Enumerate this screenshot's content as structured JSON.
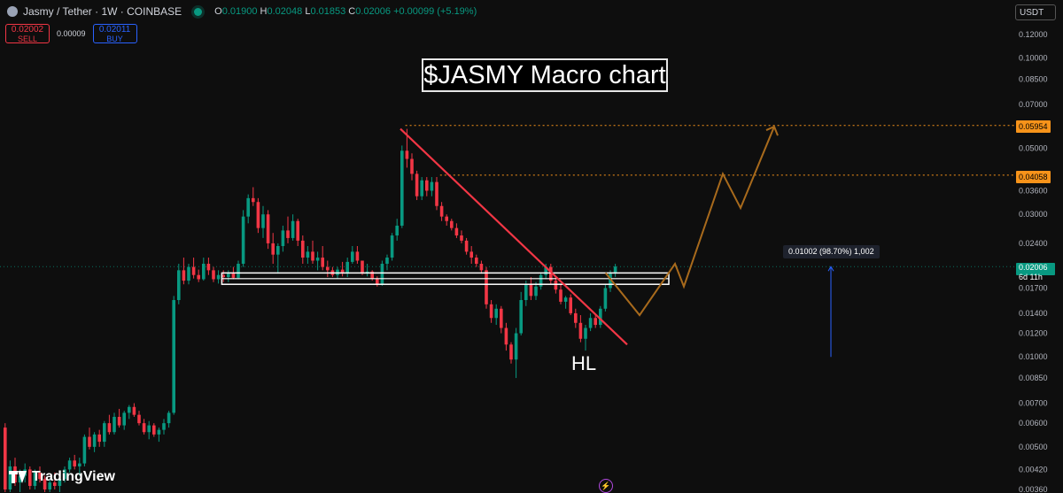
{
  "header": {
    "symbol": "Jasmy / Tether · 1W · COINBASE",
    "open_label": "O",
    "open": "0.01900",
    "high_label": "H",
    "high": "0.02048",
    "low_label": "L",
    "low": "0.01853",
    "close_label": "C",
    "close": "0.02006",
    "change": "+0.00099 (+5.19%)"
  },
  "trade": {
    "sell_price": "0.02002",
    "sell_label": "SELL",
    "spread": "0.00009",
    "buy_price": "0.02011",
    "buy_label": "BUY"
  },
  "currency_select": "USDT",
  "annotations": {
    "title": "$JASMY Macro chart",
    "hl_label": "HL",
    "measure": "0.01002 (98.70%) 1,002"
  },
  "price_labels": {
    "target_high": "0.05954",
    "target_mid": "0.04058",
    "current": "0.02006",
    "countdown": "6d 11h"
  },
  "branding": {
    "logo_text": "TradingView"
  },
  "colors": {
    "background": "#0e0e0e",
    "up": "#089981",
    "down": "#f23645",
    "trendline": "#f23645",
    "projection": "#a86a1c",
    "target_line": "#f7931a",
    "measure_arrow": "#2962ff"
  },
  "chart_data": {
    "type": "candlestick",
    "scale": "log",
    "title": "$JASMY Macro chart",
    "yaxis_ticks": [
      0.12,
      0.1,
      0.085,
      0.07,
      0.05,
      0.036,
      0.03,
      0.024,
      0.017,
      0.014,
      0.012,
      0.01,
      0.0085,
      0.007,
      0.006,
      0.005,
      0.0042,
      0.0036
    ],
    "yaxis_tick_labels": [
      "0.12000",
      "0.10000",
      "0.08500",
      "0.07000",
      "0.05000",
      "0.03600",
      "0.03000",
      "0.02400",
      "0.01700",
      "0.01400",
      "0.01200",
      "0.01000",
      "0.00850",
      "0.00700",
      "0.00600",
      "0.00500",
      "0.00420",
      "0.00360"
    ],
    "ylim": [
      0.0036,
      0.13
    ],
    "candles": [
      [
        0.0058,
        0.006,
        0.0035,
        0.0036
      ],
      [
        0.0036,
        0.0045,
        0.0034,
        0.0043
      ],
      [
        0.0043,
        0.0046,
        0.0037,
        0.0038
      ],
      [
        0.0038,
        0.0042,
        0.0035,
        0.004
      ],
      [
        0.004,
        0.0044,
        0.0038,
        0.0042
      ],
      [
        0.0042,
        0.0043,
        0.0036,
        0.0037
      ],
      [
        0.0037,
        0.0042,
        0.0036,
        0.0041
      ],
      [
        0.0041,
        0.0043,
        0.0038,
        0.0039
      ],
      [
        0.0039,
        0.004,
        0.0035,
        0.0036
      ],
      [
        0.0036,
        0.0039,
        0.0035,
        0.0038
      ],
      [
        0.0038,
        0.0041,
        0.0036,
        0.0037
      ],
      [
        0.0037,
        0.004,
        0.0035,
        0.0039
      ],
      [
        0.0039,
        0.0043,
        0.0038,
        0.0042
      ],
      [
        0.0042,
        0.0046,
        0.0041,
        0.0045
      ],
      [
        0.0045,
        0.0047,
        0.0042,
        0.0043
      ],
      [
        0.0043,
        0.0046,
        0.004,
        0.0044
      ],
      [
        0.0044,
        0.0055,
        0.0043,
        0.0054
      ],
      [
        0.0054,
        0.0058,
        0.0049,
        0.005
      ],
      [
        0.005,
        0.0056,
        0.0048,
        0.0055
      ],
      [
        0.0055,
        0.0057,
        0.005,
        0.0052
      ],
      [
        0.0052,
        0.0061,
        0.005,
        0.006
      ],
      [
        0.006,
        0.0064,
        0.0055,
        0.0056
      ],
      [
        0.0056,
        0.0065,
        0.0055,
        0.0063
      ],
      [
        0.0063,
        0.0067,
        0.0058,
        0.0059
      ],
      [
        0.0059,
        0.0066,
        0.0057,
        0.0065
      ],
      [
        0.0065,
        0.0069,
        0.0062,
        0.0068
      ],
      [
        0.0068,
        0.007,
        0.0063,
        0.0064
      ],
      [
        0.0064,
        0.0066,
        0.0059,
        0.006
      ],
      [
        0.006,
        0.0062,
        0.0055,
        0.0056
      ],
      [
        0.0056,
        0.0061,
        0.0053,
        0.0059
      ],
      [
        0.0059,
        0.006,
        0.0054,
        0.0055
      ],
      [
        0.0055,
        0.0058,
        0.0052,
        0.0057
      ],
      [
        0.0057,
        0.0062,
        0.0055,
        0.006
      ],
      [
        0.006,
        0.0066,
        0.0058,
        0.0065
      ],
      [
        0.0065,
        0.016,
        0.0064,
        0.0155
      ],
      [
        0.0155,
        0.0205,
        0.015,
        0.0195
      ],
      [
        0.0195,
        0.0215,
        0.0175,
        0.018
      ],
      [
        0.018,
        0.0205,
        0.0175,
        0.02
      ],
      [
        0.02,
        0.0215,
        0.0183,
        0.0188
      ],
      [
        0.0188,
        0.0196,
        0.0178,
        0.0182
      ],
      [
        0.0182,
        0.0215,
        0.018,
        0.0205
      ],
      [
        0.0205,
        0.0215,
        0.0188,
        0.0195
      ],
      [
        0.0195,
        0.02,
        0.0178,
        0.0182
      ],
      [
        0.0182,
        0.0195,
        0.0176,
        0.0188
      ],
      [
        0.0188,
        0.0195,
        0.0178,
        0.0185
      ],
      [
        0.0185,
        0.0195,
        0.0178,
        0.019
      ],
      [
        0.019,
        0.02,
        0.0182,
        0.0184
      ],
      [
        0.0184,
        0.021,
        0.0182,
        0.0205
      ],
      [
        0.0205,
        0.031,
        0.02,
        0.0295
      ],
      [
        0.0295,
        0.035,
        0.028,
        0.034
      ],
      [
        0.034,
        0.037,
        0.032,
        0.033
      ],
      [
        0.033,
        0.034,
        0.026,
        0.027
      ],
      [
        0.027,
        0.032,
        0.025,
        0.03
      ],
      [
        0.03,
        0.031,
        0.023,
        0.024
      ],
      [
        0.024,
        0.026,
        0.0205,
        0.022
      ],
      [
        0.022,
        0.024,
        0.019,
        0.0235
      ],
      [
        0.0235,
        0.0275,
        0.0225,
        0.0265
      ],
      [
        0.0265,
        0.0295,
        0.024,
        0.025
      ],
      [
        0.025,
        0.03,
        0.0245,
        0.0285
      ],
      [
        0.0285,
        0.029,
        0.0235,
        0.0245
      ],
      [
        0.0245,
        0.0255,
        0.0205,
        0.0215
      ],
      [
        0.0215,
        0.0235,
        0.0205,
        0.0225
      ],
      [
        0.0225,
        0.0245,
        0.0205,
        0.021
      ],
      [
        0.021,
        0.0225,
        0.0195,
        0.0215
      ],
      [
        0.0215,
        0.0235,
        0.0195,
        0.02
      ],
      [
        0.02,
        0.021,
        0.0185,
        0.0195
      ],
      [
        0.0195,
        0.02,
        0.0185,
        0.0188
      ],
      [
        0.0188,
        0.02,
        0.0183,
        0.0196
      ],
      [
        0.0196,
        0.0208,
        0.0186,
        0.019
      ],
      [
        0.019,
        0.0215,
        0.0185,
        0.0208
      ],
      [
        0.0208,
        0.0235,
        0.0205,
        0.0225
      ],
      [
        0.0225,
        0.0235,
        0.0205,
        0.021
      ],
      [
        0.021,
        0.021,
        0.0188,
        0.019
      ],
      [
        0.019,
        0.0205,
        0.0186,
        0.0193
      ],
      [
        0.0193,
        0.0195,
        0.018,
        0.0183
      ],
      [
        0.0183,
        0.0186,
        0.0172,
        0.0175
      ],
      [
        0.0175,
        0.021,
        0.0173,
        0.0205
      ],
      [
        0.0205,
        0.022,
        0.0195,
        0.0215
      ],
      [
        0.0215,
        0.026,
        0.021,
        0.0255
      ],
      [
        0.0255,
        0.029,
        0.0245,
        0.0275
      ],
      [
        0.0275,
        0.051,
        0.027,
        0.049
      ],
      [
        0.049,
        0.058,
        0.043,
        0.046
      ],
      [
        0.046,
        0.048,
        0.039,
        0.041
      ],
      [
        0.041,
        0.042,
        0.0335,
        0.0345
      ],
      [
        0.0345,
        0.04,
        0.0335,
        0.039
      ],
      [
        0.039,
        0.04,
        0.0345,
        0.036
      ],
      [
        0.036,
        0.04,
        0.0345,
        0.0385
      ],
      [
        0.0385,
        0.04,
        0.031,
        0.032
      ],
      [
        0.032,
        0.033,
        0.0285,
        0.0295
      ],
      [
        0.0295,
        0.03,
        0.0275,
        0.0285
      ],
      [
        0.0285,
        0.029,
        0.0265,
        0.027
      ],
      [
        0.027,
        0.028,
        0.025,
        0.0255
      ],
      [
        0.0255,
        0.0265,
        0.024,
        0.0245
      ],
      [
        0.0245,
        0.025,
        0.022,
        0.0225
      ],
      [
        0.0225,
        0.0235,
        0.0205,
        0.0215
      ],
      [
        0.0215,
        0.022,
        0.02,
        0.0205
      ],
      [
        0.0205,
        0.021,
        0.019,
        0.0195
      ],
      [
        0.0195,
        0.02,
        0.0145,
        0.015
      ],
      [
        0.015,
        0.0155,
        0.013,
        0.0135
      ],
      [
        0.0135,
        0.015,
        0.0128,
        0.0145
      ],
      [
        0.0145,
        0.0148,
        0.012,
        0.0125
      ],
      [
        0.0125,
        0.013,
        0.0105,
        0.011
      ],
      [
        0.011,
        0.0112,
        0.0095,
        0.0098
      ],
      [
        0.0098,
        0.0125,
        0.0085,
        0.012
      ],
      [
        0.012,
        0.0165,
        0.0118,
        0.0155
      ],
      [
        0.0155,
        0.018,
        0.0148,
        0.0175
      ],
      [
        0.0175,
        0.0185,
        0.0155,
        0.016
      ],
      [
        0.016,
        0.0178,
        0.0155,
        0.0172
      ],
      [
        0.0172,
        0.0192,
        0.0168,
        0.0188
      ],
      [
        0.0188,
        0.0205,
        0.0182,
        0.02
      ],
      [
        0.02,
        0.0205,
        0.0175,
        0.018
      ],
      [
        0.018,
        0.0185,
        0.0163,
        0.0168
      ],
      [
        0.0168,
        0.0175,
        0.015,
        0.0153
      ],
      [
        0.0153,
        0.016,
        0.0145,
        0.0158
      ],
      [
        0.0158,
        0.0162,
        0.0138,
        0.014
      ],
      [
        0.014,
        0.0145,
        0.0125,
        0.013
      ],
      [
        0.013,
        0.0138,
        0.0112,
        0.0115
      ],
      [
        0.0115,
        0.0128,
        0.0105,
        0.0125
      ],
      [
        0.0125,
        0.014,
        0.0122,
        0.0135
      ],
      [
        0.0135,
        0.0138,
        0.0125,
        0.0128
      ],
      [
        0.0128,
        0.0148,
        0.0125,
        0.0145
      ],
      [
        0.0145,
        0.0175,
        0.0142,
        0.017
      ],
      [
        0.017,
        0.0195,
        0.0165,
        0.019
      ],
      [
        0.019,
        0.02048,
        0.01853,
        0.02006
      ]
    ],
    "trendline": [
      [
        0.058
      ],
      [
        0.011
      ]
    ],
    "support_zone": [
      0.0175,
      0.0191
    ],
    "target_levels": [
      0.05954,
      0.04058
    ],
    "current_price": 0.02006,
    "projection_path": [
      0.0191,
      0.0138,
      0.0205,
      0.0172,
      0.041,
      0.0315,
      0.059
    ],
    "measure": {
      "from": 0.01,
      "to": 0.02006
    }
  }
}
